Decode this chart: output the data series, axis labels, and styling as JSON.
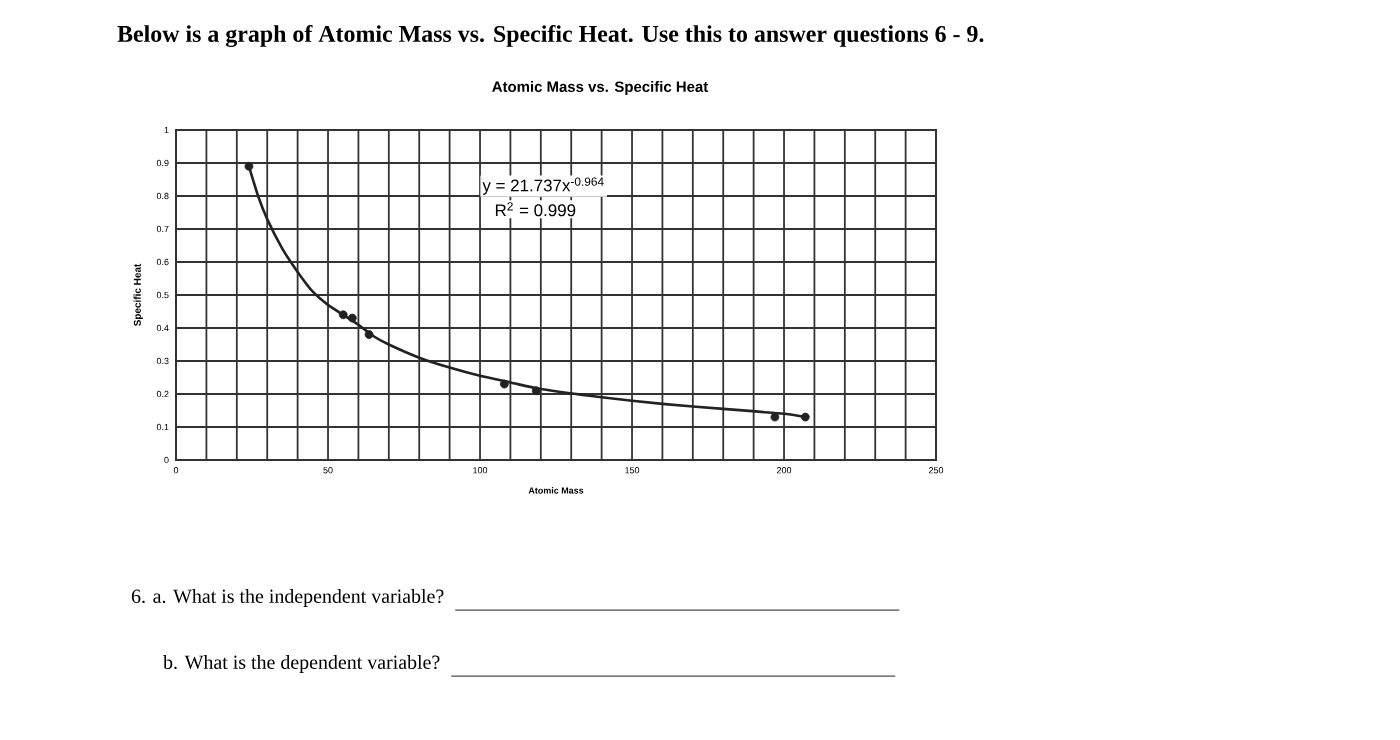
{
  "chart_data": {
    "type": "scatter",
    "title": "Below is a graph of Atomic Mass vs. Specific Heat. Use this to answer questions 6 - 9.",
    "subtitle": "Atomic Mass vs. Specific Heat",
    "xlabel": "Atomic Mass",
    "ylabel": "Specific Heat",
    "annotations": [
      "y = 21.737x$^{-0.964}$",
      "R$^{2}$ = 0.999",
      "6. a. What is the independent variable?",
      "b.   What is the dependent variable?"
    ],
    "series": [
      {
        "type": "scatter",
        "color": "#222222",
        "marker": "circle",
        "x": [
          24,
          55,
          58,
          63.5,
          108,
          118.5,
          197,
          207
        ],
        "values": [
          0.89,
          0.44,
          0.43,
          0.38,
          0.23,
          0.21,
          0.13,
          0.13
        ]
      },
      {
        "type": "line",
        "color": "#222222",
        "marker": "none",
        "x": [
          24,
          27,
          30,
          35,
          40,
          45,
          50,
          55,
          60,
          65,
          70,
          80,
          90,
          100,
          110,
          120,
          140,
          160,
          180,
          200,
          207
        ],
        "values": [
          0.89,
          0.8,
          0.73,
          0.64,
          0.57,
          0.51,
          0.47,
          0.44,
          0.41,
          0.375,
          0.35,
          0.31,
          0.28,
          0.255,
          0.235,
          0.215,
          0.19,
          0.17,
          0.155,
          0.14,
          0.13
        ]
      }
    ],
    "xlim": [
      0,
      250
    ],
    "ylim": [
      0,
      1
    ],
    "xticks": [
      0,
      {
        "value": 10,
        "label": null
      },
      {
        "value": 20,
        "label": null
      },
      {
        "value": 30,
        "label": null
      },
      {
        "value": 40,
        "label": null
      },
      50,
      {
        "value": 60,
        "label": null
      },
      {
        "value": 70,
        "label": null
      },
      {
        "value": 80,
        "label": null
      },
      {
        "value": 90,
        "label": null
      },
      100,
      {
        "value": 110,
        "label": null
      },
      {
        "value": 120,
        "label": null
      },
      {
        "value": 130,
        "label": null
      },
      {
        "value": 140,
        "label": null
      },
      150,
      {
        "value": 160,
        "label": null
      },
      {
        "value": 170,
        "label": null
      },
      {
        "value": 180,
        "label": null
      },
      {
        "value": 190,
        "label": null
      },
      200,
      {
        "value": 210,
        "label": null
      },
      {
        "value": 220,
        "label": null
      },
      {
        "value": 230,
        "label": null
      },
      {
        "value": 240,
        "label": null
      },
      250
    ],
    "yticks": [
      0,
      0.1,
      0.2,
      0.3,
      0.4,
      0.5,
      0.6,
      0.7,
      0.8,
      0.9,
      1
    ],
    "grid": true
  }
}
